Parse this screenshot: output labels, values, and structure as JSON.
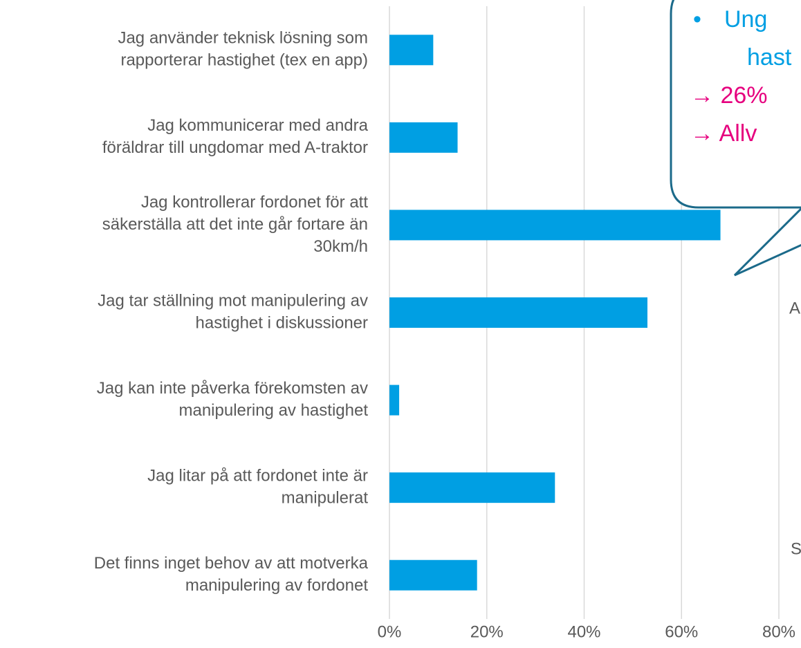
{
  "chart_data": {
    "type": "barh",
    "categories": [
      [
        "Jag använder teknisk lösning som",
        "rapporterar hastighet (tex en app)"
      ],
      [
        "Jag kommunicerar med andra",
        "föräldrar till ungdomar med A-traktor"
      ],
      [
        "Jag kontrollerar fordonet för att",
        "säkerställa att det inte går fortare än",
        "30km/h"
      ],
      [
        "Jag tar ställning mot manipulering av",
        "hastighet i diskussioner"
      ],
      [
        "Jag kan inte påverka förekomsten av",
        "manipulering av hastighet"
      ],
      [
        "Jag litar på att fordonet inte är",
        "manipulerat"
      ],
      [
        "Det finns inget behov av att motverka",
        "manipulering av fordonet"
      ]
    ],
    "values": [
      9,
      14,
      68,
      53,
      2,
      34,
      18
    ],
    "color": "#009fe3",
    "xlim": [
      0,
      80
    ],
    "xticks": [
      {
        "value": 0,
        "label": "0%"
      },
      {
        "value": 20,
        "label": "20%"
      },
      {
        "value": 40,
        "label": "40%"
      },
      {
        "value": 60,
        "label": "60%"
      },
      {
        "value": 80,
        "label": "80%"
      }
    ],
    "grid": true,
    "callout": {
      "bullet": "•",
      "lines": [
        "Ung",
        "hast",
        "→ 26%",
        "→ Allv"
      ]
    },
    "annotations": [
      "A",
      "S"
    ]
  }
}
